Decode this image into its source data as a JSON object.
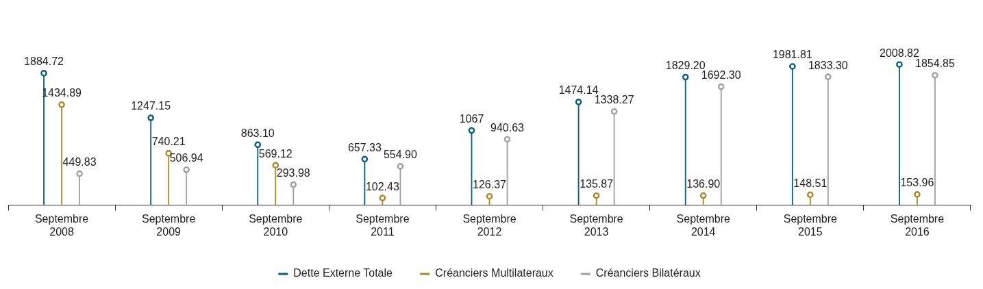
{
  "chart_data": {
    "type": "lollipop",
    "categories": [
      "Septembre 2008",
      "Septembre 2009",
      "Septembre 2010",
      "Septembre 2011",
      "Septembre 2012",
      "Septembre 2013",
      "Septembre 2014",
      "Septembre 2015",
      "Septembre 2016"
    ],
    "series": [
      {
        "name": "Dette Externe Totale",
        "color": "#0e5c7a",
        "values": [
          1884.72,
          1247.15,
          863.1,
          657.33,
          1067,
          1474.14,
          1829.2,
          1981.81,
          2008.82
        ],
        "value_labels": [
          "1884.72",
          "1247.15",
          "863.10",
          "657.33",
          "1067",
          "1474.14",
          "1829.20",
          "1981.81",
          "2008.82"
        ]
      },
      {
        "name": "Créanciers Multilateraux",
        "color": "#a88a2e",
        "values": [
          1434.89,
          740.21,
          569.12,
          102.43,
          126.37,
          135.87,
          136.9,
          148.51,
          153.96
        ],
        "value_labels": [
          "1434.89",
          "740.21",
          "569.12",
          "102.43",
          "126.37",
          "135.87",
          "136.90",
          "148.51",
          "153.96"
        ]
      },
      {
        "name": "Créanciers Bilatéraux",
        "color": "#a0a0a0",
        "values": [
          449.83,
          506.94,
          293.98,
          554.9,
          940.63,
          1338.27,
          1692.3,
          1833.3,
          1854.85
        ],
        "value_labels": [
          "449.83",
          "506.94",
          "293.98",
          "554.90",
          "940.63",
          "1338.27",
          "1692.30",
          "1833.30",
          "1854.85"
        ]
      }
    ],
    "marker": "circle",
    "legend": "bottom",
    "grid": false
  }
}
